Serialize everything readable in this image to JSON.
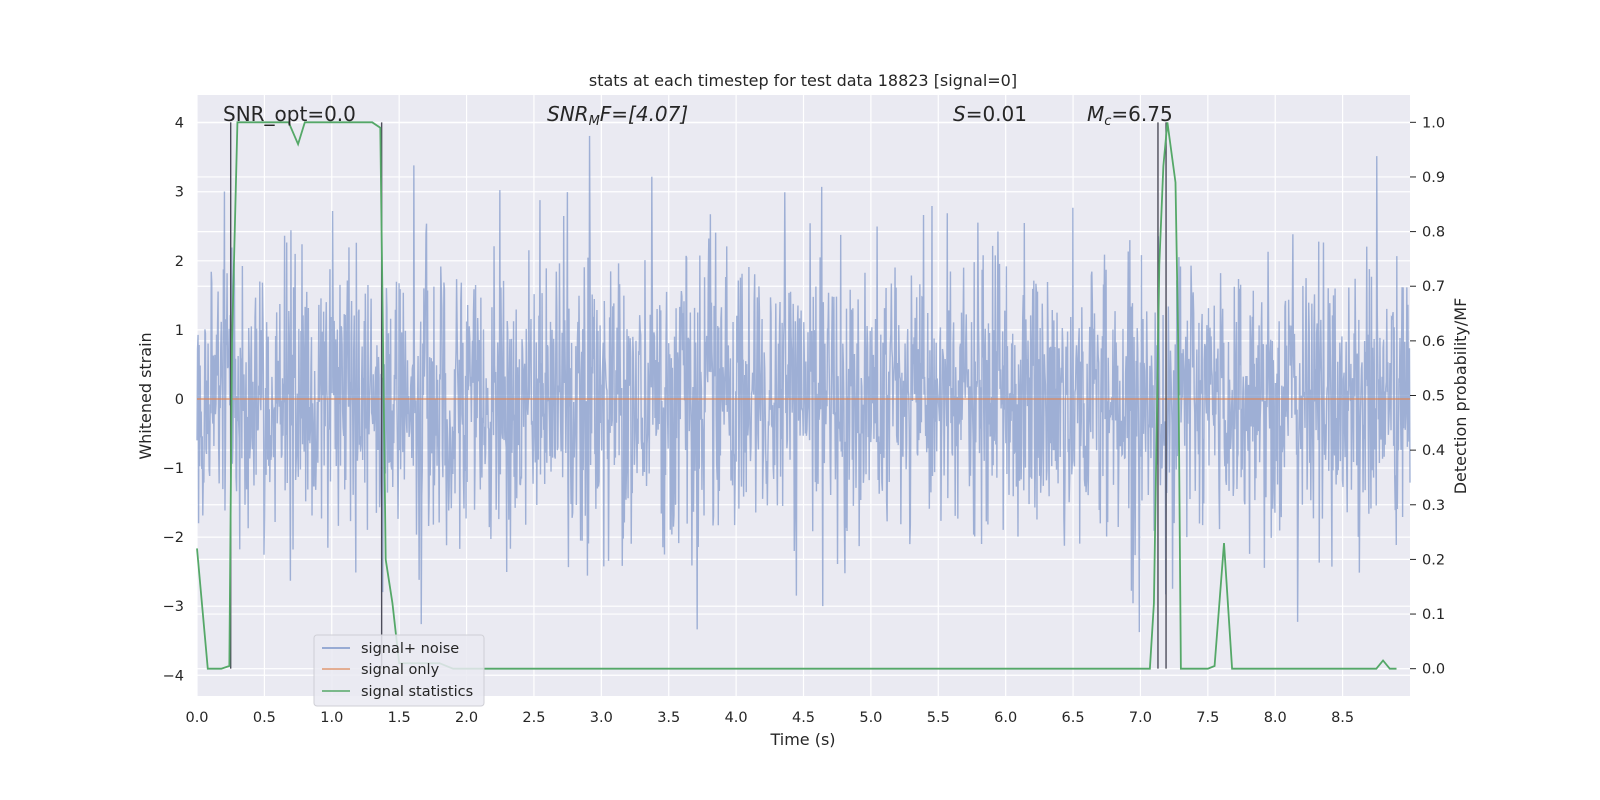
{
  "chart_data": {
    "type": "line",
    "title": "stats at each timestep for test data 18823 [signal=0]",
    "xlabel": "Time (s)",
    "ylabel": "Whitened strain",
    "y2label": "Detection probability/MF",
    "xlim": [
      0.0,
      9.0
    ],
    "ylim": [
      -4.3,
      4.4
    ],
    "y2lim": [
      -0.05,
      1.05
    ],
    "xticks": [
      "0.0",
      "0.5",
      "1.0",
      "1.5",
      "2.0",
      "2.5",
      "3.0",
      "3.5",
      "4.0",
      "4.5",
      "5.0",
      "5.5",
      "6.0",
      "6.5",
      "7.0",
      "7.5",
      "8.0",
      "8.5"
    ],
    "xtick_values": [
      0.0,
      0.5,
      1.0,
      1.5,
      2.0,
      2.5,
      3.0,
      3.5,
      4.0,
      4.5,
      5.0,
      5.5,
      6.0,
      6.5,
      7.0,
      7.5,
      8.0,
      8.5
    ],
    "yticks": [
      "4",
      "3",
      "2",
      "1",
      "0",
      "−1",
      "−2",
      "−3",
      "−4"
    ],
    "ytick_values": [
      4,
      3,
      2,
      1,
      0,
      -1,
      -2,
      -3,
      -4
    ],
    "y2ticks": [
      "1.0",
      "0.9",
      "0.8",
      "0.7",
      "0.6",
      "0.5",
      "0.4",
      "0.3",
      "0.2",
      "0.1",
      "0.0"
    ],
    "y2tick_values": [
      1.0,
      0.9,
      0.8,
      0.7,
      0.6,
      0.5,
      0.4,
      0.3,
      0.2,
      0.1,
      0.0
    ],
    "annotations": {
      "snr_opt": "SNR_opt=0.0",
      "snr_mf_sym": "SNR",
      "snr_mf_sub": "M",
      "snr_mf_rest": "F=[4.07]",
      "s_sym": "S",
      "s_rest": "=0.01",
      "mc_sym": "M",
      "mc_sub": "c",
      "mc_rest": "=6.75"
    },
    "legend": {
      "position": "lower-left",
      "entries": [
        "signal+ noise",
        "signal only",
        "signal statistics"
      ]
    },
    "series": [
      {
        "name": "signal statistics",
        "axis": "right",
        "x": [
          0.0,
          0.08,
          0.18,
          0.24,
          0.25,
          0.26,
          0.3,
          0.6,
          0.68,
          0.75,
          0.8,
          0.85,
          1.3,
          1.36,
          1.38,
          1.4,
          1.45,
          1.5,
          1.8,
          1.9,
          2.0,
          2.5,
          5.0,
          7.05,
          7.07,
          7.1,
          7.14,
          7.17,
          7.2,
          7.26,
          7.28,
          7.3,
          7.35,
          7.5,
          7.55,
          7.62,
          7.68,
          7.75,
          8.0,
          8.5,
          8.75,
          8.8,
          8.85,
          8.9
        ],
        "values": [
          0.22,
          0.0,
          0.0,
          0.005,
          0.3,
          0.6,
          1.0,
          1.0,
          1.0,
          0.96,
          1.0,
          1.0,
          1.0,
          0.99,
          0.6,
          0.2,
          0.12,
          0.01,
          0.01,
          0.0,
          0.0,
          0.0,
          0.0,
          0.0,
          0.0,
          0.12,
          0.74,
          0.92,
          1.0,
          0.89,
          0.6,
          0.0,
          0.0,
          0.0,
          0.005,
          0.23,
          0.0,
          0.0,
          0.0,
          0.0,
          0.0,
          0.015,
          0.0,
          0.0
        ]
      },
      {
        "name": "signal only",
        "axis": "left",
        "x": [
          0.0,
          9.0
        ],
        "values": [
          0.0,
          0.0
        ]
      }
    ],
    "noise": {
      "name": "signal+ noise",
      "axis": "left",
      "amplitude_std": 1.0,
      "samples": 2300,
      "max": 4.0,
      "min": -3.9
    },
    "vlines": [
      0.25,
      1.37,
      7.13,
      7.19
    ],
    "colors": {
      "background": "#eaeaf2",
      "grid": "#ffffff",
      "noise": "#7d96c9",
      "signal_only": "#dd8452",
      "statistics": "#55a868",
      "vline": "#4c4c5a",
      "text": "#262626"
    }
  }
}
